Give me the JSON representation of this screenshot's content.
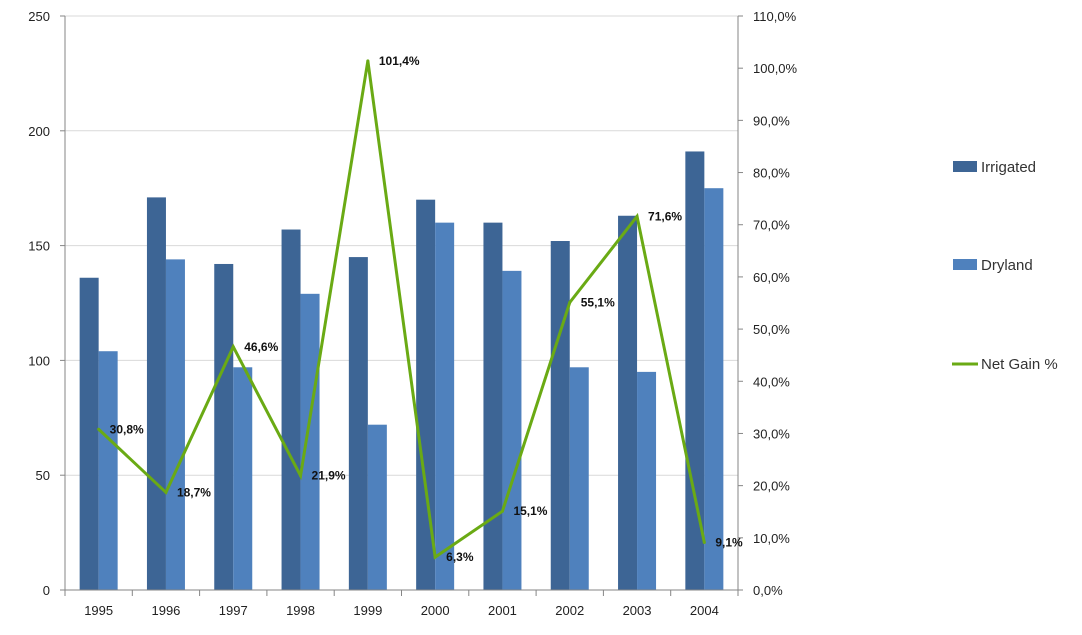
{
  "chart_data": {
    "type": "bar",
    "categories": [
      "1995",
      "1996",
      "1997",
      "1998",
      "1999",
      "2000",
      "2001",
      "2002",
      "2003",
      "2004"
    ],
    "series": [
      {
        "name": "Irrigated",
        "type": "bar",
        "axis": "left",
        "color": "#3d6595",
        "values": [
          136,
          171,
          142,
          157,
          145,
          170,
          160,
          152,
          163,
          191
        ]
      },
      {
        "name": "Dryland",
        "type": "bar",
        "axis": "left",
        "color": "#4f81bd",
        "values": [
          104,
          144,
          97,
          129,
          72,
          160,
          139,
          97,
          95,
          175
        ]
      },
      {
        "name": "Net Gain %",
        "type": "line",
        "axis": "right",
        "color": "#6aaa14",
        "values": [
          30.8,
          18.7,
          46.6,
          21.9,
          101.4,
          6.3,
          15.1,
          55.1,
          71.6,
          9.1
        ],
        "labels": [
          "30,8%",
          "18,7%",
          "46,6%",
          "21,9%",
          "101,4%",
          "6,3%",
          "15,1%",
          "55,1%",
          "71,6%",
          "9,1%"
        ]
      }
    ],
    "y_left": {
      "ylim": [
        0,
        250
      ],
      "ticks": [
        "0",
        "50",
        "100",
        "150",
        "200",
        "250"
      ]
    },
    "y_right": {
      "ylim": [
        0,
        110
      ],
      "ticks": [
        "0,0%",
        "10,0%",
        "20,0%",
        "30,0%",
        "40,0%",
        "50,0%",
        "60,0%",
        "70,0%",
        "80,0%",
        "90,0%",
        "100,0%",
        "110,0%"
      ]
    },
    "grid": true,
    "legend_position": "right",
    "title": "",
    "xlabel": "",
    "ylabel": ""
  }
}
